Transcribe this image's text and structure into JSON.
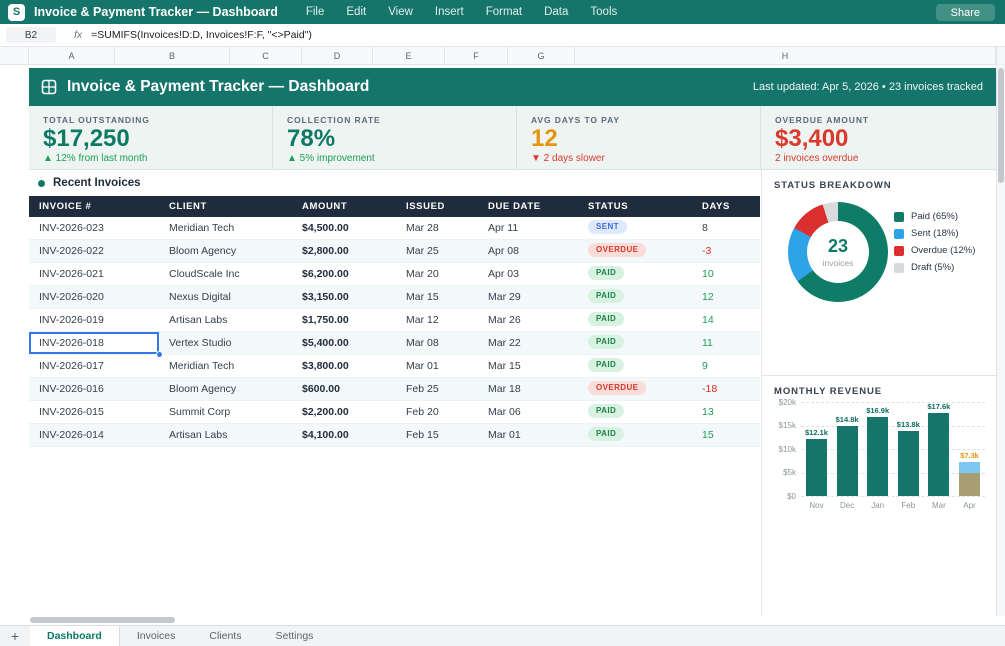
{
  "app": {
    "logo_letter": "S",
    "title": "Invoice & Payment Tracker — Dashboard",
    "menu_items": [
      "File",
      "Edit",
      "View",
      "Insert",
      "Format",
      "Data",
      "Tools"
    ],
    "share_label": "Share"
  },
  "formula_bar": {
    "cell_ref": "B2",
    "fx_label": "fx",
    "formula": "=SUMIFS(Invoices!D:D, Invoices!F:F, \"<>Paid\")"
  },
  "grid": {
    "column_letters": [
      "A",
      "B",
      "C",
      "D",
      "E",
      "F",
      "G",
      "H"
    ]
  },
  "banner": {
    "title": "Invoice & Payment Tracker — Dashboard",
    "last_updated": "Last updated: Apr 5, 2026 • 23 invoices tracked"
  },
  "kpis": [
    {
      "label": "TOTAL OUTSTANDING",
      "value": "$17,250",
      "delta": "▲ 12% from last month",
      "value_color": "#0E7A65",
      "delta_color": "#1D9E57"
    },
    {
      "label": "COLLECTION RATE",
      "value": "78%",
      "delta": "▲ 5% improvement",
      "value_color": "#0E7A65",
      "delta_color": "#1D9E57"
    },
    {
      "label": "AVG DAYS TO PAY",
      "value": "12",
      "delta": "▼ 2 days slower",
      "value_color": "#E8930C",
      "delta_color": "#D93A2B"
    },
    {
      "label": "OVERDUE AMOUNT",
      "value": "$3,400",
      "delta": "2 invoices overdue",
      "value_color": "#D93A2B",
      "delta_color": "#D93A2B"
    }
  ],
  "invoices": {
    "heading": "Recent Invoices",
    "columns": [
      "INVOICE #",
      "CLIENT",
      "AMOUNT",
      "ISSUED",
      "DUE DATE",
      "STATUS",
      "DAYS"
    ],
    "selected_invoice": "INV-2026-018",
    "rows": [
      {
        "invoice": "INV-2026-023",
        "client": "Meridian Tech",
        "amount": "$4,500.00",
        "issued": "Mar 28",
        "due": "Apr 11",
        "status": "SENT",
        "days": "8",
        "days_tone": "neutral"
      },
      {
        "invoice": "INV-2026-022",
        "client": "Bloom Agency",
        "amount": "$2,800.00",
        "issued": "Mar 25",
        "due": "Apr 08",
        "status": "OVERDUE",
        "days": "-3",
        "days_tone": "neg"
      },
      {
        "invoice": "INV-2026-021",
        "client": "CloudScale Inc",
        "amount": "$6,200.00",
        "issued": "Mar 20",
        "due": "Apr 03",
        "status": "PAID",
        "days": "10",
        "days_tone": "pos"
      },
      {
        "invoice": "INV-2026-020",
        "client": "Nexus Digital",
        "amount": "$3,150.00",
        "issued": "Mar 15",
        "due": "Mar 29",
        "status": "PAID",
        "days": "12",
        "days_tone": "pos"
      },
      {
        "invoice": "INV-2026-019",
        "client": "Artisan Labs",
        "amount": "$1,750.00",
        "issued": "Mar 12",
        "due": "Mar 26",
        "status": "PAID",
        "days": "14",
        "days_tone": "pos"
      },
      {
        "invoice": "INV-2026-018",
        "client": "Vertex Studio",
        "amount": "$5,400.00",
        "issued": "Mar 08",
        "due": "Mar 22",
        "status": "PAID",
        "days": "11",
        "days_tone": "pos"
      },
      {
        "invoice": "INV-2026-017",
        "client": "Meridian Tech",
        "amount": "$3,800.00",
        "issued": "Mar 01",
        "due": "Mar 15",
        "status": "PAID",
        "days": "9",
        "days_tone": "pos"
      },
      {
        "invoice": "INV-2026-016",
        "client": "Bloom Agency",
        "amount": "$600.00",
        "issued": "Feb 25",
        "due": "Mar 18",
        "status": "OVERDUE",
        "days": "-18",
        "days_tone": "neg"
      },
      {
        "invoice": "INV-2026-015",
        "client": "Summit Corp",
        "amount": "$2,200.00",
        "issued": "Feb 20",
        "due": "Mar 06",
        "status": "PAID",
        "days": "13",
        "days_tone": "pos"
      },
      {
        "invoice": "INV-2026-014",
        "client": "Artisan Labs",
        "amount": "$4,100.00",
        "issued": "Feb 15",
        "due": "Mar 01",
        "status": "PAID",
        "days": "15",
        "days_tone": "pos"
      }
    ],
    "status_styles": {
      "SENT": {
        "bg": "#DFE9FC",
        "text": "#3D6CE0"
      },
      "OVERDUE": {
        "bg": "#FADCD9",
        "text": "#D4382C"
      },
      "PAID": {
        "bg": "#D7F2E0",
        "text": "#1F8149"
      }
    }
  },
  "chart_data": [
    {
      "type": "pie",
      "title": "STATUS BREAKDOWN",
      "center_value": "23",
      "center_label": "invoices",
      "segments": [
        {
          "label": "Paid",
          "pct": 65,
          "color": "#0E7C66"
        },
        {
          "label": "Sent",
          "pct": 18,
          "color": "#2FA3E8"
        },
        {
          "label": "Overdue",
          "pct": 12,
          "color": "#DB2E2E"
        },
        {
          "label": "Draft",
          "pct": 5,
          "color": "#D8DADC"
        }
      ],
      "legend_position": "right"
    },
    {
      "type": "bar",
      "title": "MONTHLY REVENUE",
      "categories": [
        "Nov",
        "Dec",
        "Jan",
        "Feb",
        "Mar",
        "Apr"
      ],
      "values": [
        12.1,
        14.8,
        16.9,
        13.8,
        17.6,
        7.3
      ],
      "unit": "thousand dollars",
      "ylim": [
        0,
        20
      ],
      "yticks": [
        "$20k",
        "$15k",
        "$10k",
        "$5k",
        "$0"
      ],
      "grid": "dashed",
      "bar_color": "#15756A",
      "value_label_color": "#0D6B5E",
      "bars": [
        {
          "month": "Nov",
          "value": 12.1,
          "label": "$12.1k"
        },
        {
          "month": "Dec",
          "value": 14.8,
          "label": "$14.8k"
        },
        {
          "month": "Jan",
          "value": 16.9,
          "label": "$16.9k"
        },
        {
          "month": "Feb",
          "value": 13.8,
          "label": "$13.8k"
        },
        {
          "month": "Mar",
          "value": 17.6,
          "label": "$17.6k"
        },
        {
          "month": "Apr",
          "value": 7.3,
          "label": "$7.3k",
          "label_color": "#E8930C",
          "segments": [
            {
              "value": 5.0,
              "color": "#A79F73"
            },
            {
              "value": 2.3,
              "color": "#7CC8F0"
            }
          ]
        }
      ]
    }
  ],
  "sheet_tabs": {
    "add_label": "+",
    "tabs": [
      {
        "label": "Dashboard",
        "active": true
      },
      {
        "label": "Invoices",
        "active": false
      },
      {
        "label": "Clients",
        "active": false
      },
      {
        "label": "Settings",
        "active": false
      }
    ]
  }
}
